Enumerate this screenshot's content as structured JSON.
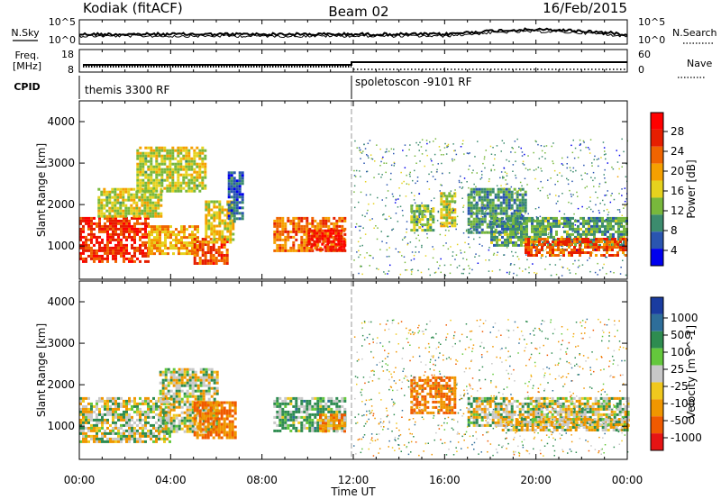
{
  "header": {
    "station": "Kodiak (fitACF)",
    "beam": "Beam 02",
    "date": "16/Feb/2015"
  },
  "noise_panel": {
    "left_label": "N.Sky",
    "right_label": "N.Search",
    "left_ticks": [
      "10^5",
      "10^0"
    ],
    "right_ticks": [
      "10^5",
      "10^0"
    ]
  },
  "freq_panel": {
    "left_label_line1": "Freq.",
    "left_label_line2": "[MHz]",
    "right_label": "Nave",
    "left_ticks": [
      "18",
      "8"
    ],
    "right_ticks": [
      "60",
      "0"
    ]
  },
  "cpid_panel": {
    "label": "CPID",
    "segments": [
      {
        "text": "themis 3300 RF",
        "start_hour": 0
      },
      {
        "text": "spoletoscon -9101 RF",
        "start_hour": 12
      }
    ]
  },
  "colors": {
    "power": [
      "#0000ee",
      "#2a55b0",
      "#3c8c6e",
      "#78b83c",
      "#e6d21e",
      "#f5a000",
      "#f06400",
      "#e61e00",
      "#ff0000"
    ],
    "velocity": [
      "#1a3ca0",
      "#2e6e9a",
      "#2e8c50",
      "#64c83c",
      "#c8c8c8",
      "#f0c81e",
      "#f09600",
      "#f05a00",
      "#e61414"
    ]
  },
  "chart_data": [
    {
      "type": "heatmap",
      "name": "power",
      "xlabel": "",
      "ylabel": "Slant Range [km]",
      "xlim": [
        0,
        24
      ],
      "ylim": [
        200,
        4500
      ],
      "yticks": [
        1000,
        2000,
        3000,
        4000
      ],
      "colorbar": {
        "label": "Power [dB]",
        "ticks": [
          4,
          8,
          12,
          16,
          20,
          24,
          28
        ],
        "range": [
          0,
          30
        ]
      },
      "regions": [
        {
          "t0": 0.0,
          "t1": 3.0,
          "r0": 650,
          "r1": 1700,
          "level": 26
        },
        {
          "t0": 3.0,
          "t1": 5.2,
          "r0": 800,
          "r1": 1500,
          "level": 18
        },
        {
          "t0": 5.0,
          "t1": 6.5,
          "r0": 600,
          "r1": 1200,
          "level": 24
        },
        {
          "t0": 5.5,
          "t1": 6.8,
          "r0": 1100,
          "r1": 2100,
          "level": 16
        },
        {
          "t0": 0.8,
          "t1": 3.6,
          "r0": 1700,
          "r1": 2400,
          "level": 14
        },
        {
          "t0": 2.5,
          "t1": 5.5,
          "r0": 2300,
          "r1": 3400,
          "level": 14
        },
        {
          "t0": 6.5,
          "t1": 7.2,
          "r0": 1600,
          "r1": 2800,
          "level": 5
        },
        {
          "t0": 8.5,
          "t1": 11.6,
          "r0": 900,
          "r1": 1700,
          "level": 22
        },
        {
          "t0": 10.0,
          "t1": 11.6,
          "r0": 900,
          "r1": 1400,
          "level": 28
        },
        {
          "t0": 14.5,
          "t1": 15.5,
          "r0": 1400,
          "r1": 2000,
          "level": 12
        },
        {
          "t0": 15.8,
          "t1": 16.5,
          "r0": 1500,
          "r1": 2300,
          "level": 14
        },
        {
          "t0": 17.0,
          "t1": 19.5,
          "r0": 1300,
          "r1": 2400,
          "level": 8
        },
        {
          "t0": 18.0,
          "t1": 24.0,
          "r0": 1000,
          "r1": 1700,
          "level": 9
        },
        {
          "t0": 19.5,
          "t1": 24.0,
          "r0": 800,
          "r1": 1200,
          "level": 24
        }
      ]
    },
    {
      "type": "heatmap",
      "name": "velocity",
      "xlabel": "Time UT",
      "ylabel": "Slant Range [km]",
      "xlim": [
        0,
        24
      ],
      "ylim": [
        200,
        4500
      ],
      "yticks": [
        1000,
        2000,
        3000,
        4000
      ],
      "xticks": [
        "00:00",
        "04:00",
        "08:00",
        "12:00",
        "16:00",
        "20:00",
        "00:00"
      ],
      "colorbar": {
        "label": "Velocity [m s^-1]",
        "ticks": [
          "1000",
          "500",
          "100",
          "25",
          "-25",
          "-100",
          "-500",
          "-1000"
        ]
      },
      "regions": [
        {
          "t0": 0.0,
          "t1": 4.0,
          "r0": 650,
          "r1": 1700,
          "level": 0
        },
        {
          "t0": 3.5,
          "t1": 6.0,
          "r0": 900,
          "r1": 2400,
          "level": 0
        },
        {
          "t0": 5.0,
          "t1": 6.8,
          "r0": 700,
          "r1": 1600,
          "level": -300
        },
        {
          "t0": 8.5,
          "t1": 11.6,
          "r0": 900,
          "r1": 1700,
          "level": 120
        },
        {
          "t0": 10.5,
          "t1": 11.6,
          "r0": 900,
          "r1": 1300,
          "level": -200
        },
        {
          "t0": 14.5,
          "t1": 16.5,
          "r0": 1300,
          "r1": 2200,
          "level": -300
        },
        {
          "t0": 17.0,
          "t1": 24.0,
          "r0": 1000,
          "r1": 1700,
          "level": 0
        },
        {
          "t0": 18.5,
          "t1": 24.0,
          "r0": 900,
          "r1": 1200,
          "level": -60
        }
      ]
    }
  ]
}
